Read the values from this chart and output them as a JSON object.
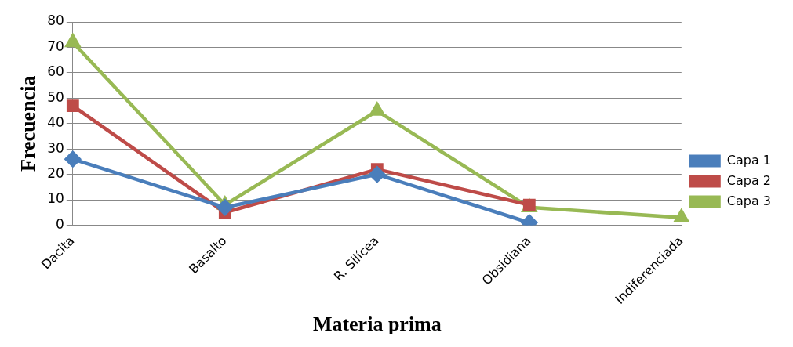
{
  "chart_data": {
    "type": "line",
    "xlabel": "Materia prima",
    "ylabel": "Frecuencia",
    "categories": [
      "Dacita",
      "Basalto",
      "R. Silícea",
      "Obsidiana",
      "Indiferenciada"
    ],
    "series": [
      {
        "name": "Capa 1",
        "color": "#4a7ebb",
        "marker": "diamond",
        "values": [
          26,
          7,
          20,
          1,
          null
        ]
      },
      {
        "name": "Capa 2",
        "color": "#be4b48",
        "marker": "square",
        "values": [
          47,
          5,
          22,
          8,
          null
        ]
      },
      {
        "name": "Capa 3",
        "color": "#98b954",
        "marker": "triangle",
        "values": [
          72,
          8,
          45,
          7,
          3
        ]
      }
    ],
    "ylim": [
      0,
      80
    ],
    "yticks": [
      0,
      10,
      20,
      30,
      40,
      50,
      60,
      70,
      80
    ],
    "grid": "y",
    "legend": "right",
    "line_style": "solid"
  }
}
